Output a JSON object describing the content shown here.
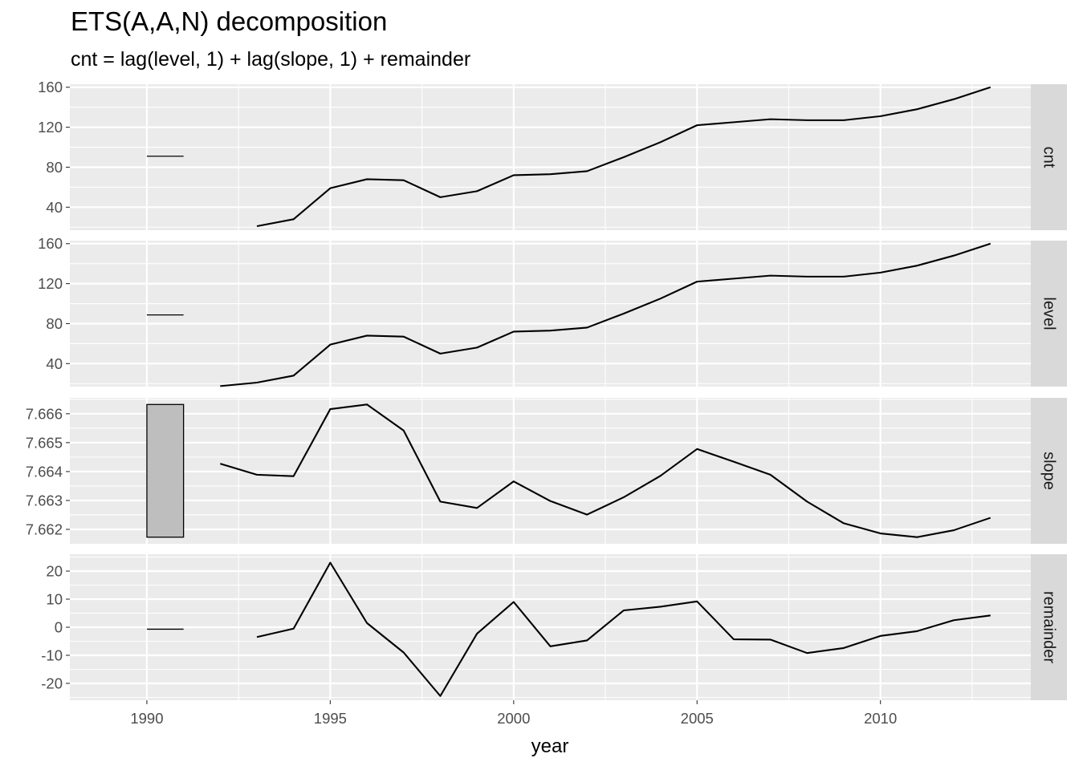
{
  "chart_data": {
    "type": "line",
    "title": "ETS(A,A,N) decomposition",
    "subtitle": "cnt = lag(level, 1) + lag(slope, 1) + remainder",
    "xlabel": "year",
    "xlim": [
      1987.9,
      2014.1
    ],
    "x_ticks": [
      1990,
      1995,
      2000,
      2005,
      2010
    ],
    "x_tick_labels": [
      "1990",
      "1995",
      "2000",
      "2005",
      "2010"
    ],
    "grid": true,
    "panels": [
      {
        "name": "cnt",
        "ylim": [
          17,
          163
        ],
        "y_ticks": [
          40,
          80,
          120,
          160
        ],
        "y_tick_labels": [
          "40",
          "80",
          "120",
          "160"
        ],
        "scale_bar": {
          "x": [
            1990,
            1991
          ],
          "y": [
            91,
            91
          ]
        },
        "series": {
          "x": [
            1993,
            1994,
            1995,
            1996,
            1997,
            1998,
            1999,
            2000,
            2001,
            2002,
            2003,
            2004,
            2005,
            2006,
            2007,
            2008,
            2009,
            2010,
            2011,
            2012,
            2013
          ],
          "y": [
            21,
            28,
            59,
            68,
            67,
            50,
            56,
            72,
            73,
            76,
            90,
            105,
            122,
            125,
            128,
            127,
            127,
            131,
            138,
            148,
            160
          ]
        }
      },
      {
        "name": "level",
        "ylim": [
          17,
          163
        ],
        "y_ticks": [
          40,
          80,
          120,
          160
        ],
        "y_tick_labels": [
          "40",
          "80",
          "120",
          "160"
        ],
        "scale_bar": {
          "x": [
            1990,
            1991
          ],
          "y": [
            88.7,
            88.7
          ]
        },
        "series": {
          "x": [
            1992,
            1993,
            1994,
            1995,
            1996,
            1997,
            1998,
            1999,
            2000,
            2001,
            2002,
            2003,
            2004,
            2005,
            2006,
            2007,
            2008,
            2009,
            2010,
            2011,
            2012,
            2013
          ],
          "y": [
            17.5,
            21,
            28,
            59,
            68,
            67,
            50,
            56,
            72,
            73,
            76,
            90,
            105,
            122,
            125,
            128,
            127,
            127,
            131,
            138,
            148,
            160
          ]
        }
      },
      {
        "name": "slope",
        "ylim": [
          7.6615,
          7.66655
        ],
        "y_ticks": [
          7.662,
          7.663,
          7.664,
          7.665,
          7.666
        ],
        "y_tick_labels": [
          "7.662",
          "7.663",
          "7.664",
          "7.665",
          "7.666"
        ],
        "scale_bar": {
          "x": [
            1990,
            1991
          ],
          "y": [
            7.66173,
            7.66632
          ]
        },
        "series": {
          "x": [
            1992,
            1993,
            1994,
            1995,
            1996,
            1997,
            1998,
            1999,
            2000,
            2001,
            2002,
            2003,
            2004,
            2005,
            2006,
            2007,
            2008,
            2009,
            2010,
            2011,
            2012,
            2013
          ],
          "y": [
            7.66427,
            7.66389,
            7.66384,
            7.66616,
            7.66632,
            7.66542,
            7.66296,
            7.66274,
            7.66366,
            7.66298,
            7.66251,
            7.66311,
            7.66385,
            7.66478,
            7.66434,
            7.66389,
            7.66296,
            7.66221,
            7.66186,
            7.66173,
            7.66197,
            7.6624
          ]
        }
      },
      {
        "name": "remainder",
        "ylim": [
          -26,
          26
        ],
        "y_ticks": [
          -20,
          -10,
          0,
          10,
          20
        ],
        "y_tick_labels": [
          "-20",
          "-10",
          "0",
          "10",
          "20"
        ],
        "scale_bar": {
          "x": [
            1990,
            1991
          ],
          "y": [
            -0.7,
            -0.7
          ]
        },
        "series": {
          "x": [
            1993,
            1994,
            1995,
            1996,
            1997,
            1998,
            1999,
            2000,
            2001,
            2002,
            2003,
            2004,
            2005,
            2006,
            2007,
            2008,
            2009,
            2010,
            2011,
            2012,
            2013
          ],
          "y": [
            -3.5,
            -0.5,
            23,
            1.5,
            -9,
            -24.5,
            -2.3,
            9,
            -6.8,
            -4.7,
            6,
            7.3,
            9.2,
            -4.3,
            -4.4,
            -9.2,
            -7.4,
            -3.1,
            -1.4,
            2.5,
            4.2
          ]
        }
      }
    ]
  }
}
